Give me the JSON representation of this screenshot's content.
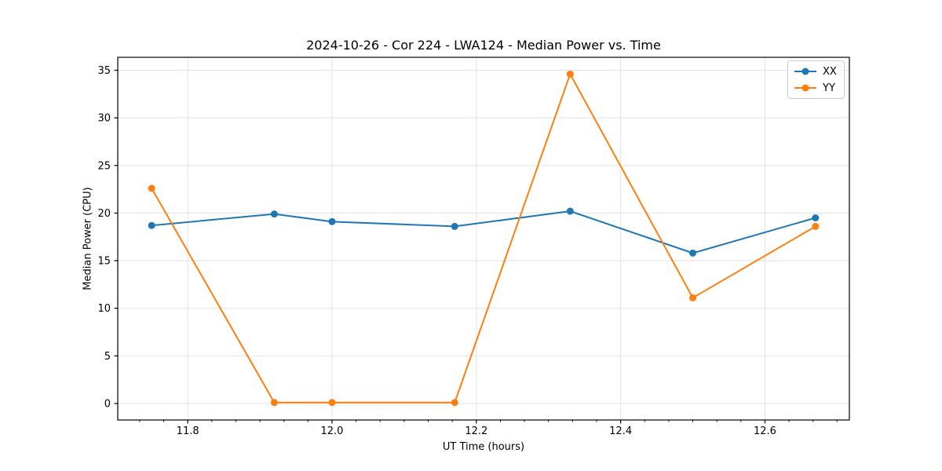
{
  "chart_data": {
    "type": "line",
    "title": "2024-10-26 - Cor 224 - LWA124 - Median Power vs. Time",
    "xlabel": "UT Time (hours)",
    "ylabel": "Median Power (CPU)",
    "x": [
      11.75,
      11.92,
      12.0,
      12.17,
      12.33,
      12.5,
      12.67
    ],
    "series": [
      {
        "name": "XX",
        "color": "#1f77b4",
        "values": [
          18.7,
          19.9,
          19.1,
          18.6,
          20.2,
          15.8,
          19.5
        ]
      },
      {
        "name": "YY",
        "color": "#ff7f0e",
        "values": [
          22.6,
          0.1,
          0.1,
          0.1,
          34.6,
          11.1,
          18.6
        ]
      }
    ],
    "xlim": [
      11.703,
      12.717
    ],
    "ylim": [
      -1.73,
      36.36
    ],
    "xtick_values": [
      11.8,
      12.0,
      12.2,
      12.4,
      12.6
    ],
    "xtick_labels": [
      "11.8",
      "12.0",
      "12.2",
      "12.4",
      "12.6"
    ],
    "ytick_values": [
      0,
      5,
      10,
      15,
      20,
      25,
      30,
      35
    ],
    "ytick_labels": [
      "0",
      "5",
      "10",
      "15",
      "20",
      "25",
      "30",
      "35"
    ],
    "x_minor_step": 0.0333333,
    "grid": true,
    "marker": "o",
    "legend_position": "upper right"
  },
  "style": {
    "background": "#ffffff",
    "grid_color": "#e3e3e3",
    "spine_color": "#000000",
    "tick_color": "#000000",
    "text_color": "#000000",
    "legend_border_color": "#cccccc"
  }
}
